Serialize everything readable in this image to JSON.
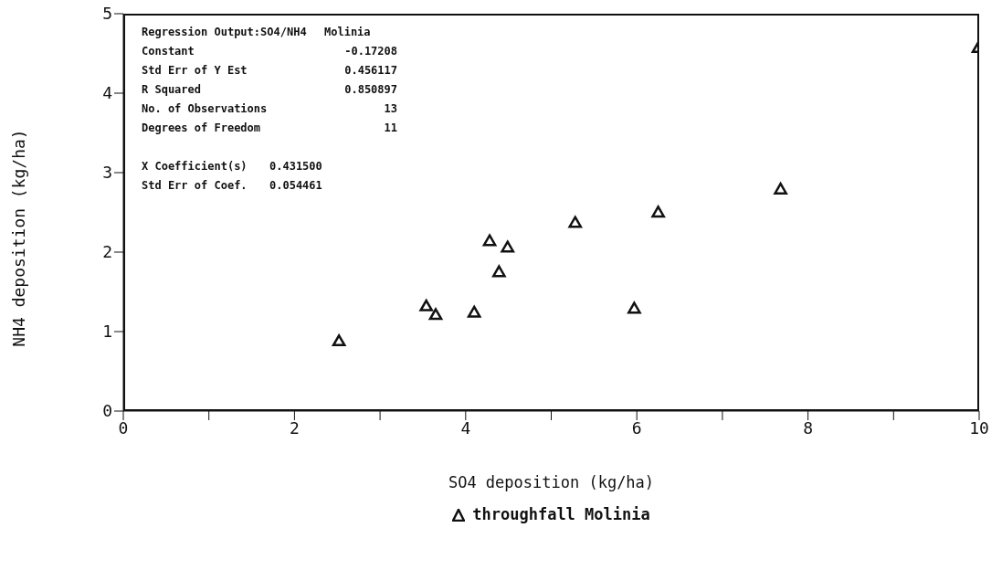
{
  "chart_data": {
    "type": "scatter",
    "xlabel": "SO4 deposition (kg/ha)",
    "ylabel": "NH4 deposition (kg/ha)",
    "annotations": [
      "Regression Output:SO4/NH4",
      "Molinia",
      "Constant",
      "-0.17208",
      "Std Err of Y Est",
      "0.456117",
      "R Squared",
      "0.850897",
      "No. of Observations",
      "13",
      "Degrees of Freedom",
      "11",
      "X Coefficient(s)",
      "0.431500",
      "Std Err of Coef.",
      "0.054461"
    ],
    "series": [
      {
        "name": "throughfall Molinia",
        "color": "#111111",
        "x": [
          2.52,
          3.54,
          3.65,
          4.1,
          4.28,
          4.39,
          4.49,
          5.28,
          5.97,
          6.25,
          7.68,
          9.99
        ],
        "values": [
          0.87,
          1.31,
          1.2,
          1.23,
          2.13,
          1.74,
          2.05,
          2.36,
          1.28,
          2.49,
          2.78,
          4.56
        ]
      }
    ],
    "xlim": [
      0,
      10
    ],
    "xticks": [
      0,
      {
        "value": 1,
        "label": null
      },
      2,
      {
        "value": 3,
        "label": null
      },
      4,
      {
        "value": 5,
        "label": null
      },
      6,
      {
        "value": 7,
        "label": null
      },
      8,
      {
        "value": 9,
        "label": null
      },
      10
    ],
    "ylim": [
      0,
      5
    ],
    "yticks": [
      0,
      1,
      2,
      3,
      4,
      5
    ],
    "marker": "triangle",
    "legend": "bottom"
  }
}
